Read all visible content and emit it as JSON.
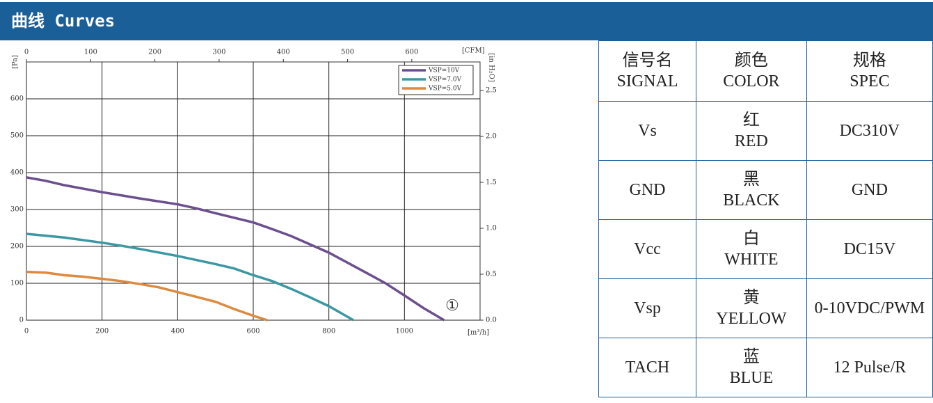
{
  "header": {
    "title": "曲线 Curves"
  },
  "chart_data": {
    "type": "line",
    "x_label": "[m³/h]",
    "y_label": "[Pa]",
    "x2_label": "[CFM]",
    "y2_label": "[in H₂O]",
    "xlim": [
      0,
      1200
    ],
    "xticks": [
      0,
      200,
      400,
      600,
      800,
      1000
    ],
    "ylim": [
      0,
      700
    ],
    "yticks": [
      0,
      100,
      200,
      300,
      400,
      500,
      600
    ],
    "x2lim": [
      0,
      706.3
    ],
    "x2ticks": [
      0,
      100,
      200,
      300,
      400,
      500,
      600
    ],
    "y2lim": [
      0,
      2.81
    ],
    "y2ticks": [
      {
        "value": 0,
        "label": "0.0"
      },
      0.5,
      {
        "value": 1,
        "label": "1.0"
      },
      1.5,
      {
        "value": 2,
        "label": "2.0"
      },
      2.5
    ],
    "grid": true,
    "annotation": "①",
    "series": [
      {
        "name": "VSP=10V",
        "color": "#6b4f8e",
        "x": [
          0,
          50,
          100,
          200,
          300,
          400,
          450,
          500,
          600,
          650,
          700,
          800,
          900,
          950,
          1000,
          1050,
          1105
        ],
        "values": [
          387,
          378,
          366,
          347,
          330,
          314,
          303,
          290,
          265,
          247,
          228,
          183,
          128,
          100,
          67,
          33,
          0
        ]
      },
      {
        "name": "VSP=7.0V",
        "color": "#3b98a3",
        "x": [
          0,
          100,
          200,
          250,
          300,
          400,
          500,
          550,
          600,
          650,
          700,
          750,
          800,
          865
        ],
        "values": [
          234,
          224,
          210,
          202,
          193,
          174,
          152,
          140,
          122,
          106,
          85,
          62,
          38,
          0
        ]
      },
      {
        "name": "VSP=5.0V",
        "color": "#de8a3e",
        "x": [
          0,
          50,
          100,
          150,
          200,
          250,
          300,
          350,
          400,
          450,
          500,
          550,
          600,
          637
        ],
        "values": [
          131,
          129,
          122,
          118,
          112,
          106,
          98,
          89,
          76,
          63,
          50,
          30,
          12,
          0
        ]
      }
    ]
  },
  "table": {
    "header": [
      [
        "信号名",
        "SIGNAL"
      ],
      [
        "颜色",
        "COLOR"
      ],
      [
        "规格",
        "SPEC"
      ]
    ],
    "rows": [
      [
        [
          "Vs"
        ],
        [
          "红",
          "RED"
        ],
        [
          "DC310V"
        ]
      ],
      [
        [
          "GND"
        ],
        [
          "黑",
          "BLACK"
        ],
        [
          "GND"
        ]
      ],
      [
        [
          "Vcc"
        ],
        [
          "白",
          "WHITE"
        ],
        [
          "DC15V"
        ]
      ],
      [
        [
          "Vsp"
        ],
        [
          "黄",
          "YELLOW"
        ],
        [
          "0-10VDC/PWM"
        ]
      ],
      [
        [
          "TACH"
        ],
        [
          "蓝",
          "BLUE"
        ],
        [
          "12 Pulse/R"
        ]
      ]
    ]
  }
}
